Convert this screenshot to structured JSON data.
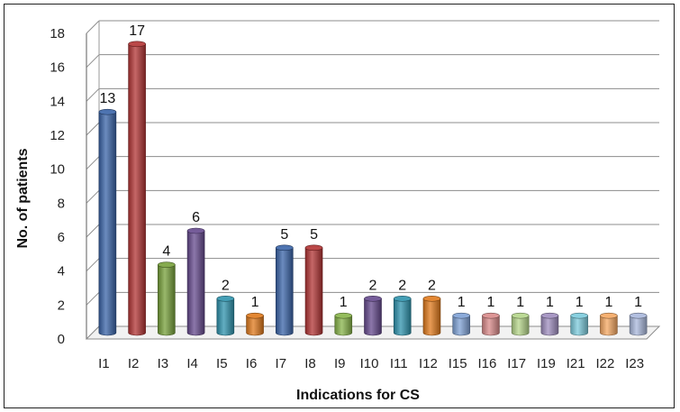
{
  "chart_data": {
    "type": "bar",
    "title": "",
    "xlabel": "Indications for CS",
    "ylabel": "No. of patients",
    "ylim": [
      0,
      18
    ],
    "ytick_step": 2,
    "grid": true,
    "categories": [
      "I1",
      "I2",
      "I3",
      "I4",
      "I5",
      "I6",
      "I7",
      "I8",
      "I9",
      "I10",
      "I11",
      "I12",
      "I15",
      "I16",
      "I17",
      "I19",
      "I21",
      "I22",
      "I23"
    ],
    "values": [
      13,
      17,
      4,
      6,
      2,
      1,
      5,
      5,
      1,
      2,
      2,
      2,
      1,
      1,
      1,
      1,
      1,
      1,
      1
    ],
    "colors": [
      "#3a64a8",
      "#b23434",
      "#77a03a",
      "#664a8e",
      "#2f93ad",
      "#e07a1c",
      "#3a64a8",
      "#b23434",
      "#88b44a",
      "#664a8e",
      "#2f93ad",
      "#e07a1c",
      "#7fa2d6",
      "#d98a8a",
      "#b5d68a",
      "#9f8ebf",
      "#7ccbdc",
      "#f5a862",
      "#a9b8dc"
    ]
  }
}
